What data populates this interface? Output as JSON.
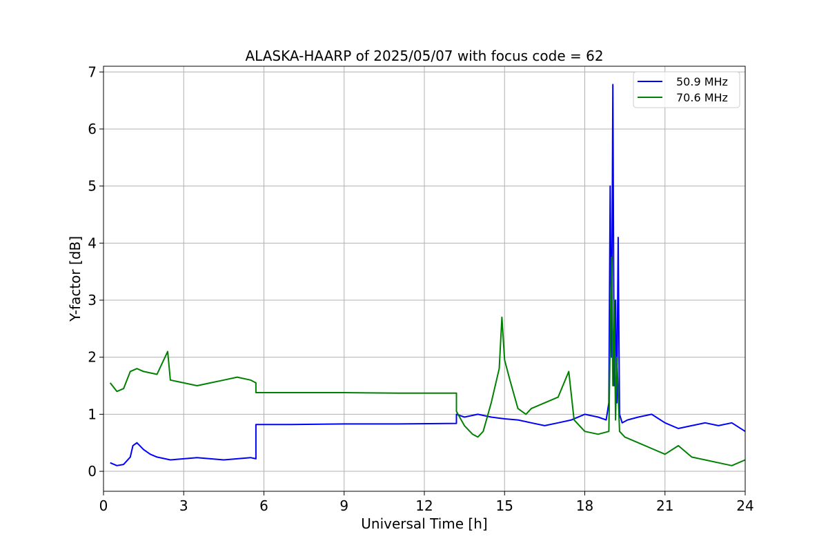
{
  "chart_data": {
    "type": "line",
    "title": "ALASKA-HAARP of 2025/05/07 with focus code = 62",
    "xlabel": "Universal Time [h]",
    "ylabel": "Y-factor [dB]",
    "xlim": [
      0,
      24
    ],
    "ylim": [
      -0.35,
      7.1
    ],
    "x_ticks": [
      0,
      3,
      6,
      9,
      12,
      15,
      18,
      21,
      24
    ],
    "y_ticks": [
      0,
      1,
      2,
      3,
      4,
      5,
      6,
      7
    ],
    "grid": true,
    "legend_position": "top-right",
    "series": [
      {
        "name": "50.9 MHz",
        "color": "#0000ff",
        "x": [
          0.25,
          0.5,
          0.75,
          1.0,
          1.1,
          1.25,
          1.5,
          1.75,
          2.0,
          2.5,
          3.0,
          3.5,
          4.0,
          4.5,
          5.0,
          5.5,
          5.7,
          5.7,
          7.0,
          9.0,
          11.0,
          13.2,
          13.2,
          13.5,
          14.0,
          14.5,
          15.0,
          15.5,
          16.0,
          16.5,
          17.0,
          17.5,
          18.0,
          18.5,
          18.8,
          18.9,
          18.95,
          19.0,
          19.05,
          19.1,
          19.15,
          19.2,
          19.25,
          19.3,
          19.4,
          19.6,
          20.0,
          20.5,
          21.0,
          21.5,
          22.0,
          22.5,
          23.0,
          23.5,
          24.0
        ],
        "values": [
          0.15,
          0.1,
          0.12,
          0.25,
          0.45,
          0.5,
          0.38,
          0.3,
          0.25,
          0.2,
          0.22,
          0.24,
          0.22,
          0.2,
          0.22,
          0.24,
          0.22,
          0.82,
          0.82,
          0.83,
          0.83,
          0.84,
          1.0,
          0.95,
          1.0,
          0.95,
          0.92,
          0.9,
          0.85,
          0.8,
          0.85,
          0.9,
          1.0,
          0.95,
          0.9,
          1.2,
          5.0,
          2.0,
          6.78,
          1.5,
          3.0,
          1.2,
          4.1,
          1.0,
          0.85,
          0.9,
          0.95,
          1.0,
          0.85,
          0.75,
          0.8,
          0.85,
          0.8,
          0.85,
          0.7
        ]
      },
      {
        "name": "70.6 MHz",
        "color": "#008000",
        "x": [
          0.25,
          0.5,
          0.75,
          1.0,
          1.25,
          1.5,
          2.0,
          2.4,
          2.5,
          3.0,
          3.5,
          4.0,
          4.5,
          5.0,
          5.5,
          5.7,
          5.7,
          7.0,
          9.0,
          11.0,
          13.2,
          13.2,
          13.5,
          13.8,
          14.0,
          14.2,
          14.5,
          14.8,
          14.9,
          15.0,
          15.2,
          15.5,
          15.8,
          16.0,
          16.5,
          17.0,
          17.4,
          17.6,
          18.0,
          18.5,
          18.9,
          18.95,
          19.0,
          19.05,
          19.1,
          19.15,
          19.2,
          19.3,
          19.5,
          20.0,
          20.5,
          21.0,
          21.5,
          22.0,
          22.5,
          23.0,
          23.5,
          24.0
        ],
        "values": [
          1.55,
          1.4,
          1.45,
          1.75,
          1.8,
          1.75,
          1.7,
          2.1,
          1.6,
          1.55,
          1.5,
          1.55,
          1.6,
          1.65,
          1.6,
          1.55,
          1.38,
          1.38,
          1.38,
          1.37,
          1.37,
          1.05,
          0.8,
          0.65,
          0.6,
          0.7,
          1.2,
          1.8,
          2.7,
          1.95,
          1.6,
          1.1,
          1.0,
          1.1,
          1.2,
          1.3,
          1.75,
          0.9,
          0.7,
          0.65,
          0.7,
          2.3,
          3.75,
          1.5,
          3.0,
          0.9,
          2.0,
          0.7,
          0.6,
          0.5,
          0.4,
          0.3,
          0.45,
          0.25,
          0.2,
          0.15,
          0.1,
          0.2
        ]
      }
    ]
  }
}
